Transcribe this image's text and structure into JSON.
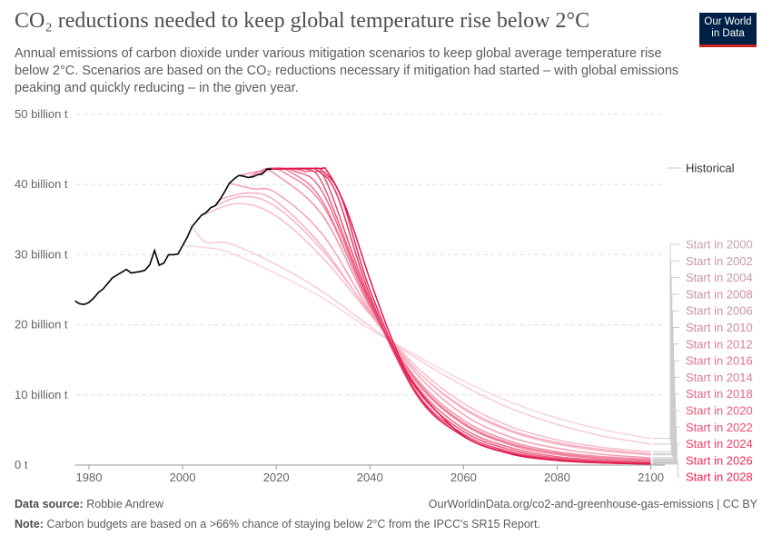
{
  "title": "CO₂ reductions needed to keep global temperature rise below 2°C",
  "subtitle": "Annual emissions of carbon dioxide under various mitigation scenarios to keep global average temperature rise below 2°C. Scenarios are based on the CO₂ reductions necessary if mitigation had started – with global emissions peaking and quickly reducing – in the given year.",
  "logo": "Our World in Data",
  "footer": {
    "source_label": "Data source:",
    "source": "Robbie Andrew",
    "url": "OurWorldinData.org/co2-and-greenhouse-gas-emissions | CC BY",
    "note_label": "Note:",
    "note": "Carbon budgets are based on a >66% chance of staying below 2°C from the IPCC's SR15 Report."
  },
  "chart_data": {
    "type": "line",
    "xlim": [
      1977,
      2103
    ],
    "ylim": [
      0,
      50
    ],
    "grid": true,
    "legend_placement": "right",
    "x_ticks": [
      1980,
      2000,
      2020,
      2040,
      2060,
      2080,
      2100
    ],
    "y_ticks": [
      {
        "value": 0,
        "label": "0 t"
      },
      {
        "value": 10,
        "label": "10 billion t"
      },
      {
        "value": 20,
        "label": "20 billion t"
      },
      {
        "value": 30,
        "label": "30 billion t"
      },
      {
        "value": 40,
        "label": "40 billion t"
      },
      {
        "value": 50,
        "label": "50 billion t"
      }
    ],
    "historical": {
      "name": "Historical",
      "color": "#000000",
      "points": [
        [
          1977,
          23.4
        ],
        [
          1978,
          23.0
        ],
        [
          1979,
          22.9
        ],
        [
          1980,
          23.2
        ],
        [
          1981,
          23.8
        ],
        [
          1982,
          24.6
        ],
        [
          1983,
          25.1
        ],
        [
          1984,
          25.9
        ],
        [
          1985,
          26.7
        ],
        [
          1986,
          27.1
        ],
        [
          1987,
          27.5
        ],
        [
          1988,
          27.9
        ],
        [
          1989,
          27.4
        ],
        [
          1990,
          27.5
        ],
        [
          1991,
          27.6
        ],
        [
          1992,
          27.8
        ],
        [
          1993,
          28.6
        ],
        [
          1994,
          30.6
        ],
        [
          1995,
          28.5
        ],
        [
          1996,
          28.8
        ],
        [
          1997,
          30.0
        ],
        [
          1998,
          30.0
        ],
        [
          1999,
          30.1
        ],
        [
          2000,
          31.3
        ],
        [
          2001,
          32.5
        ],
        [
          2002,
          34.0
        ],
        [
          2003,
          34.8
        ],
        [
          2004,
          35.6
        ],
        [
          2005,
          36.0
        ],
        [
          2006,
          36.7
        ],
        [
          2007,
          37.0
        ],
        [
          2008,
          37.9
        ],
        [
          2009,
          39.0
        ],
        [
          2010,
          40.2
        ],
        [
          2011,
          40.8
        ],
        [
          2012,
          41.3
        ],
        [
          2013,
          41.2
        ],
        [
          2014,
          41.0
        ],
        [
          2015,
          41.1
        ],
        [
          2016,
          41.4
        ],
        [
          2017,
          41.5
        ],
        [
          2018,
          42.2
        ],
        [
          2019,
          42.2
        ]
      ]
    },
    "series": [
      {
        "name": "Start in 2000",
        "color": "#fad4de",
        "label_color": "#c9a3b0",
        "points": [
          [
            2000,
            31.3
          ],
          [
            2005,
            31.0
          ],
          [
            2010,
            30.3
          ],
          [
            2020,
            27.3
          ],
          [
            2030,
            23.8
          ],
          [
            2040,
            19.4
          ],
          [
            2050,
            15.6
          ],
          [
            2060,
            12.0
          ],
          [
            2070,
            9.0
          ],
          [
            2080,
            6.7
          ],
          [
            2090,
            5.0
          ],
          [
            2100,
            3.8
          ]
        ]
      },
      {
        "name": "Start in 2002",
        "color": "#f9cad6",
        "label_color": "#c99aa9",
        "points": [
          [
            2002,
            34.0
          ],
          [
            2005,
            31.8
          ],
          [
            2010,
            31.6
          ],
          [
            2020,
            28.6
          ],
          [
            2030,
            24.7
          ],
          [
            2040,
            19.8
          ],
          [
            2050,
            15.2
          ],
          [
            2060,
            11.3
          ],
          [
            2070,
            8.1
          ],
          [
            2080,
            5.8
          ],
          [
            2090,
            4.1
          ],
          [
            2100,
            3.0
          ]
        ]
      },
      {
        "name": "Start in 2004",
        "color": "#f8bccb",
        "label_color": "#cc95a6",
        "points": [
          [
            2004,
            35.6
          ],
          [
            2012,
            37.3
          ],
          [
            2020,
            35.5
          ],
          [
            2030,
            29.5
          ],
          [
            2040,
            21.5
          ],
          [
            2050,
            14.0
          ],
          [
            2060,
            8.8
          ],
          [
            2070,
            5.5
          ],
          [
            2080,
            3.6
          ],
          [
            2090,
            2.5
          ],
          [
            2100,
            1.9
          ]
        ]
      },
      {
        "name": "Start in 2008",
        "color": "#f6adbf",
        "label_color": "#d08ea2",
        "points": [
          [
            2008,
            37.9
          ],
          [
            2014,
            38.8
          ],
          [
            2020,
            37.6
          ],
          [
            2030,
            31.0
          ],
          [
            2040,
            21.6
          ],
          [
            2050,
            13.5
          ],
          [
            2060,
            8.2
          ],
          [
            2070,
            5.0
          ],
          [
            2080,
            3.2
          ],
          [
            2090,
            2.2
          ],
          [
            2100,
            1.6
          ]
        ]
      },
      {
        "name": "Start in 2006",
        "color": "#f7b4c5",
        "label_color": "#cf92a4",
        "points": [
          [
            2006,
            36.7
          ],
          [
            2013,
            38.3
          ],
          [
            2020,
            36.8
          ],
          [
            2030,
            30.5
          ],
          [
            2040,
            21.8
          ],
          [
            2050,
            13.5
          ],
          [
            2060,
            8.0
          ],
          [
            2070,
            4.8
          ],
          [
            2080,
            3.0
          ],
          [
            2090,
            2.0
          ],
          [
            2100,
            1.45
          ]
        ]
      },
      {
        "name": "Start in 2010",
        "color": "#f4a0b5",
        "label_color": "#d5889d",
        "points": [
          [
            2010,
            40.2
          ],
          [
            2015,
            39.4
          ],
          [
            2020,
            38.8
          ],
          [
            2030,
            32.8
          ],
          [
            2040,
            22.0
          ],
          [
            2050,
            13.0
          ],
          [
            2060,
            7.2
          ],
          [
            2070,
            4.0
          ],
          [
            2080,
            2.4
          ],
          [
            2090,
            1.5
          ],
          [
            2100,
            1.05
          ]
        ]
      },
      {
        "name": "Start in 2012",
        "color": "#f292aa",
        "label_color": "#da8198",
        "points": [
          [
            2012,
            41.3
          ],
          [
            2017,
            41.9
          ],
          [
            2020,
            41.4
          ],
          [
            2030,
            35.5
          ],
          [
            2040,
            22.5
          ],
          [
            2050,
            12.3
          ],
          [
            2060,
            6.4
          ],
          [
            2070,
            3.4
          ],
          [
            2080,
            1.9
          ],
          [
            2090,
            1.2
          ],
          [
            2100,
            0.85
          ]
        ]
      },
      {
        "name": "Start in 2016",
        "color": "#ef7896",
        "label_color": "#e2718d",
        "points": [
          [
            2016,
            41.4
          ],
          [
            2019,
            42.3
          ],
          [
            2023,
            41.8
          ],
          [
            2030,
            37.5
          ],
          [
            2040,
            22.8
          ],
          [
            2050,
            12.0
          ],
          [
            2060,
            6.0
          ],
          [
            2070,
            3.1
          ],
          [
            2080,
            1.7
          ],
          [
            2090,
            1.0
          ],
          [
            2100,
            0.7
          ]
        ]
      },
      {
        "name": "Start in 2014",
        "color": "#f0849f",
        "label_color": "#de7a92",
        "points": [
          [
            2014,
            41.0
          ],
          [
            2018,
            42.3
          ],
          [
            2022,
            41.6
          ],
          [
            2030,
            37.0
          ],
          [
            2040,
            22.8
          ],
          [
            2050,
            11.8
          ],
          [
            2060,
            5.8
          ],
          [
            2070,
            2.9
          ],
          [
            2080,
            1.5
          ],
          [
            2090,
            0.9
          ],
          [
            2100,
            0.6
          ]
        ]
      },
      {
        "name": "Start in 2018",
        "color": "#ed6a8b",
        "label_color": "#e66685",
        "points": [
          [
            2018,
            42.2
          ],
          [
            2020,
            42.3
          ],
          [
            2024,
            41.9
          ],
          [
            2030,
            38.8
          ],
          [
            2040,
            23.0
          ],
          [
            2050,
            11.3
          ],
          [
            2060,
            5.2
          ],
          [
            2070,
            2.5
          ],
          [
            2080,
            1.2
          ],
          [
            2090,
            0.7
          ],
          [
            2100,
            0.45
          ]
        ]
      },
      {
        "name": "Start in 2020",
        "color": "#eb5a7e",
        "label_color": "#ea5a7c",
        "points": [
          [
            2019,
            42.2
          ],
          [
            2022,
            42.3
          ],
          [
            2026,
            41.9
          ],
          [
            2030,
            40.0
          ],
          [
            2040,
            23.2
          ],
          [
            2050,
            10.8
          ],
          [
            2060,
            4.8
          ],
          [
            2070,
            2.2
          ],
          [
            2080,
            1.0
          ],
          [
            2090,
            0.55
          ],
          [
            2100,
            0.35
          ]
        ]
      },
      {
        "name": "Start in 2022",
        "color": "#e94a72",
        "label_color": "#ee4b71",
        "points": [
          [
            2019,
            42.2
          ],
          [
            2024,
            42.3
          ],
          [
            2028,
            41.9
          ],
          [
            2031,
            40.0
          ],
          [
            2040,
            23.6
          ],
          [
            2050,
            10.3
          ],
          [
            2060,
            4.4
          ],
          [
            2070,
            1.9
          ],
          [
            2080,
            0.85
          ],
          [
            2090,
            0.45
          ],
          [
            2100,
            0.28
          ]
        ]
      },
      {
        "name": "Start in 2024",
        "color": "#e63966",
        "label_color": "#f13c67",
        "points": [
          [
            2019,
            42.2
          ],
          [
            2026,
            42.3
          ],
          [
            2029,
            41.9
          ],
          [
            2033,
            38.5
          ],
          [
            2040,
            24.2
          ],
          [
            2050,
            10.0
          ],
          [
            2060,
            4.1
          ],
          [
            2070,
            1.7
          ],
          [
            2080,
            0.75
          ],
          [
            2090,
            0.38
          ],
          [
            2100,
            0.23
          ]
        ]
      },
      {
        "name": "Start in 2026",
        "color": "#e4295a",
        "label_color": "#f42d5d",
        "points": [
          [
            2019,
            42.2
          ],
          [
            2027,
            42.3
          ],
          [
            2030,
            41.9
          ],
          [
            2034,
            38.0
          ],
          [
            2040,
            25.0
          ],
          [
            2050,
            10.2
          ],
          [
            2060,
            4.1
          ],
          [
            2070,
            1.65
          ],
          [
            2080,
            0.7
          ],
          [
            2090,
            0.33
          ],
          [
            2100,
            0.18
          ]
        ]
      },
      {
        "name": "Start in 2028",
        "color": "#e2164c",
        "label_color": "#f71d52",
        "points": [
          [
            2019,
            42.2
          ],
          [
            2029,
            42.3
          ],
          [
            2031,
            41.8
          ],
          [
            2035,
            36.5
          ],
          [
            2040,
            26.5
          ],
          [
            2045,
            17.5
          ],
          [
            2050,
            11.0
          ],
          [
            2060,
            4.2
          ],
          [
            2070,
            1.6
          ],
          [
            2080,
            0.65
          ],
          [
            2090,
            0.3
          ],
          [
            2100,
            0.15
          ]
        ]
      }
    ]
  }
}
